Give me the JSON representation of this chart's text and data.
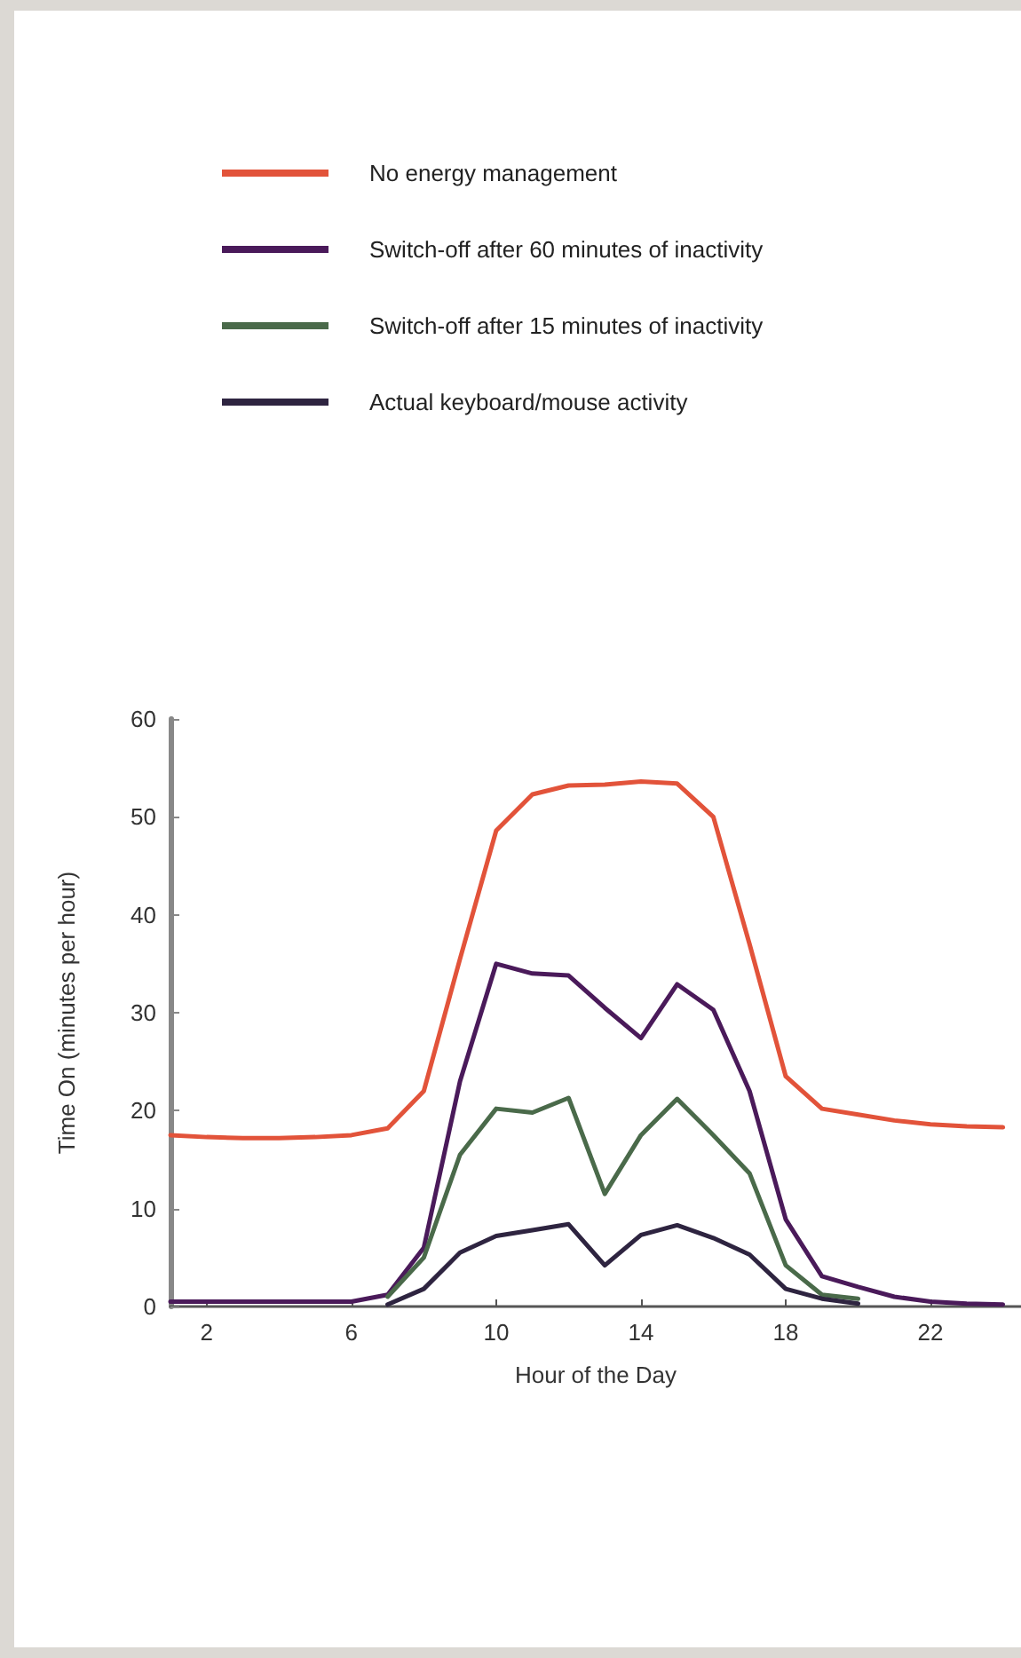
{
  "chart_data": {
    "type": "line",
    "xlabel": "Hour of the Day",
    "ylabel": "Time On (minutes per hour)",
    "x": [
      1,
      2,
      3,
      4,
      5,
      6,
      7,
      8,
      9,
      10,
      11,
      12,
      13,
      14,
      15,
      16,
      17,
      18,
      19,
      20,
      21,
      22,
      23,
      24
    ],
    "xlim": [
      1,
      24.5
    ],
    "xticks": [
      2,
      6,
      10,
      14,
      18,
      22
    ],
    "ylim": [
      0,
      60
    ],
    "yticks": [
      0,
      10,
      20,
      30,
      40,
      50,
      60
    ],
    "grid": false,
    "legend": "top left",
    "marker": "none",
    "line_style": "solid",
    "series": [
      {
        "name": "No energy management",
        "color": "#e2533a",
        "values": [
          17.5,
          17.3,
          17.2,
          17.2,
          17.3,
          17.5,
          18.2,
          22,
          35.5,
          48.6,
          52.3,
          53.2,
          53.3,
          53.6,
          53.4,
          50,
          37,
          23.5,
          20.2,
          19.6,
          19,
          18.6,
          18.4,
          18.3
        ]
      },
      {
        "name": "Switch-off after 60 minutes of inactivity",
        "color": "#4a1a5a",
        "values": [
          0.5,
          0.5,
          0.5,
          0.5,
          0.5,
          0.5,
          1.2,
          6,
          23,
          35,
          34,
          33.8,
          30.5,
          27.4,
          32.9,
          30.3,
          22,
          8.9,
          3.1,
          2,
          1,
          0.5,
          0.3,
          0.2
        ]
      },
      {
        "name": "Switch-off after 15 minutes of inactivity",
        "color": "#4a6a4a",
        "values": [
          null,
          null,
          null,
          null,
          null,
          null,
          1,
          5,
          15.5,
          20.2,
          19.8,
          21.3,
          11.5,
          17.5,
          21.2,
          17.5,
          13.6,
          4.2,
          1.2,
          0.8,
          null,
          null,
          null,
          null
        ]
      },
      {
        "name": "Actual keyboard/mouse activity",
        "color": "#2e2440",
        "values": [
          null,
          null,
          null,
          null,
          null,
          null,
          0.2,
          1.8,
          5.5,
          7.2,
          7.8,
          8.4,
          4.2,
          7.3,
          8.3,
          7,
          5.3,
          1.8,
          0.8,
          0.3,
          null,
          null,
          null,
          null
        ]
      }
    ]
  }
}
